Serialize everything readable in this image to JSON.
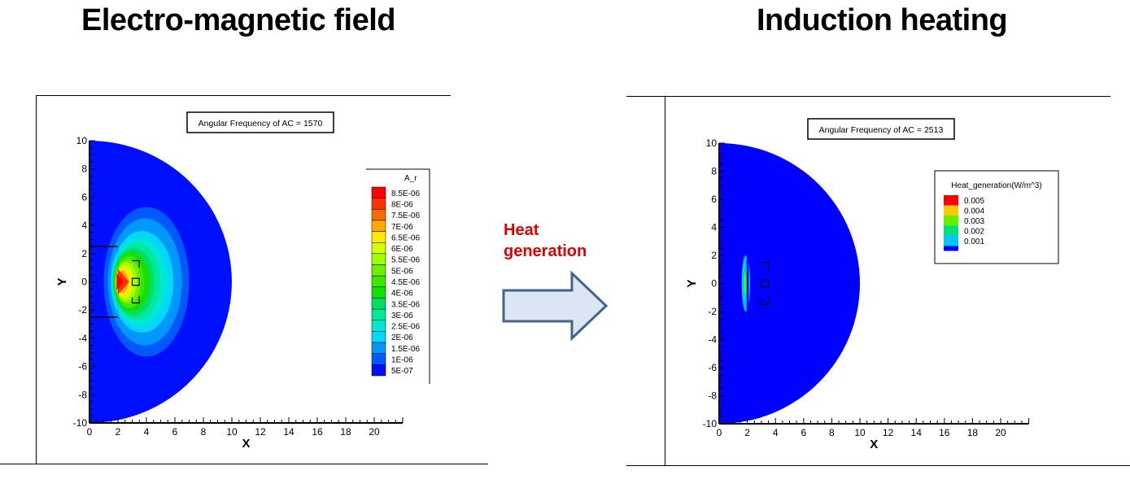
{
  "left_panel": {
    "title": "Electro-magnetic field",
    "plot_header": "Angular Frequency of AC = 1570",
    "x_label": "X",
    "y_label": "Y",
    "x_ticks": [
      "0",
      "2",
      "4",
      "6",
      "8",
      "10",
      "12",
      "14",
      "16",
      "18",
      "20"
    ],
    "y_ticks": [
      "10",
      "8",
      "6",
      "4",
      "2",
      "0",
      "-2",
      "-4",
      "-6",
      "-8",
      "-10"
    ],
    "legend": {
      "title": "A_r",
      "labels": [
        "8.5E-06",
        "8E-06",
        "7.5E-06",
        "7E-06",
        "6.5E-06",
        "6E-06",
        "5.5E-06",
        "5E-06",
        "4.5E-06",
        "4E-06",
        "3.5E-06",
        "3E-06",
        "2.5E-06",
        "2E-06",
        "1.5E-06",
        "1E-06",
        "5E-07"
      ],
      "colors": [
        "#ff0000",
        "#ff3000",
        "#ff6a00",
        "#ffaa00",
        "#ffe800",
        "#d4ff00",
        "#a0ff00",
        "#6cf000",
        "#3ae800",
        "#14e000",
        "#00e060",
        "#00e89a",
        "#00e8d0",
        "#00d8ff",
        "#0098ff",
        "#0058ff",
        "#0010ff"
      ]
    }
  },
  "arrow": {
    "label": "Heat generation",
    "fill": "#dce6f2",
    "stroke": "#41648c"
  },
  "right_panel": {
    "title": "Induction heating",
    "plot_header": "Angular Frequency of AC = 2513",
    "x_label": "X",
    "y_label": "Y",
    "x_ticks": [
      "0",
      "2",
      "4",
      "6",
      "8",
      "10",
      "12",
      "14",
      "16",
      "18",
      "20"
    ],
    "y_ticks": [
      "10",
      "8",
      "6",
      "4",
      "2",
      "0",
      "-2",
      "-4",
      "-6",
      "-8",
      "-10"
    ],
    "legend": {
      "title": "Heat_generation(W/m^3)",
      "labels": [
        "0.005",
        "0.004",
        "0.003",
        "0.002",
        "0.001"
      ],
      "colors": [
        "#ff0000",
        "#ffc800",
        "#64f000",
        "#00e080",
        "#00c8ff",
        "#0000ff"
      ]
    }
  }
}
